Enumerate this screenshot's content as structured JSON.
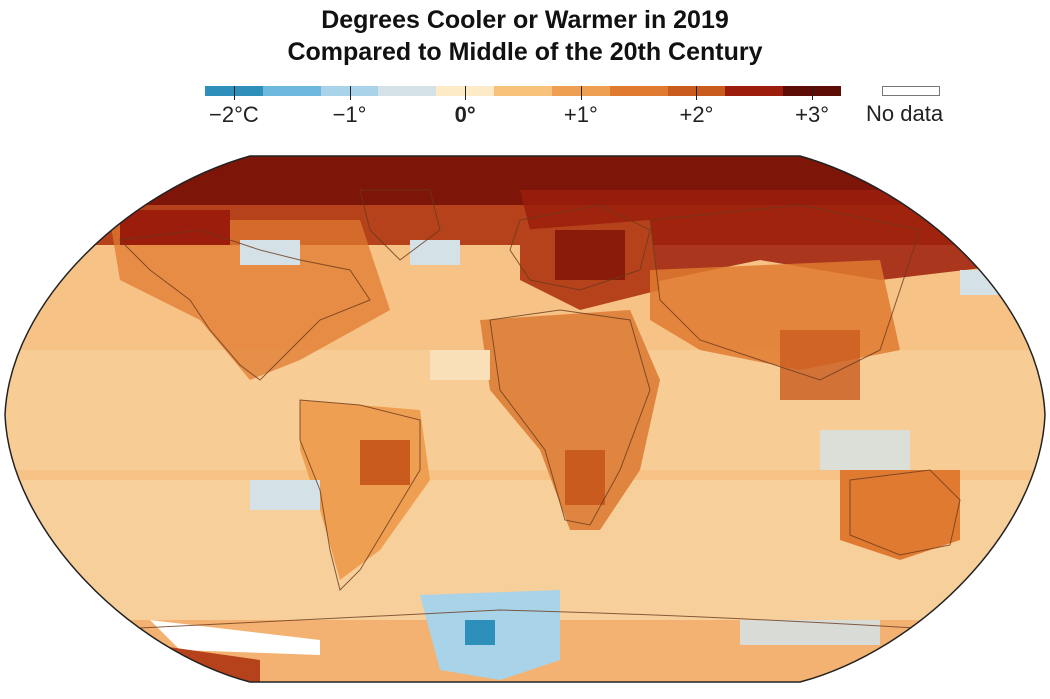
{
  "title": {
    "line1": "Degrees Cooler or Warmer in 2019",
    "line2": "Compared to Middle of the 20th Century"
  },
  "legend": {
    "swatches": [
      "#2e8fba",
      "#6cb9dd",
      "#a9d3e8",
      "#d4e2e8",
      "#fdebc8",
      "#f9c27b",
      "#ef9f52",
      "#e07a30",
      "#c95b1e",
      "#9c1d0c",
      "#5e0d06"
    ],
    "labels": [
      {
        "text": "−2°C",
        "bold": false
      },
      {
        "text": "−1°",
        "bold": false
      },
      {
        "text": "0°",
        "bold": true
      },
      {
        "text": "+1°",
        "bold": false
      },
      {
        "text": "+2°",
        "bold": false
      },
      {
        "text": "+3°",
        "bold": false
      }
    ],
    "no_data_label": "No data",
    "no_data_color": "#ffffff"
  },
  "map": {
    "projection": "Robinson",
    "ocean_base_color": "#f6c285",
    "land_outline_color": "#6b3a1e",
    "border_color": "#333333"
  }
}
